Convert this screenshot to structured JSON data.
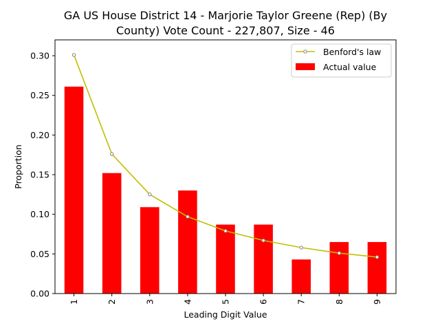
{
  "chart_data": {
    "type": "bar",
    "title_line1": "GA US House District 14 - Marjorie Taylor Greene (Rep) (By",
    "title_line2": "County) Vote Count - 227,807, Size - 46",
    "xlabel": "Leading Digit Value",
    "ylabel": "Proportion",
    "categories": [
      "1",
      "2",
      "3",
      "4",
      "5",
      "6",
      "7",
      "8",
      "9"
    ],
    "ylim": [
      0,
      0.32
    ],
    "yticks": [
      0.0,
      0.05,
      0.1,
      0.15,
      0.2,
      0.25,
      0.3
    ],
    "ytick_labels": [
      "0.00",
      "0.05",
      "0.10",
      "0.15",
      "0.20",
      "0.25",
      "0.30"
    ],
    "grid": false,
    "legend_position": "top-right",
    "series": [
      {
        "name": "Actual value",
        "kind": "bar",
        "color": "#ff0000",
        "values": [
          0.261,
          0.152,
          0.109,
          0.13,
          0.087,
          0.087,
          0.043,
          0.065,
          0.065
        ]
      },
      {
        "name": "Benford's law",
        "kind": "line",
        "color": "#bfbf00",
        "marker_color": "#808080",
        "values": [
          0.301,
          0.176,
          0.125,
          0.097,
          0.079,
          0.067,
          0.058,
          0.051,
          0.046
        ]
      }
    ]
  }
}
